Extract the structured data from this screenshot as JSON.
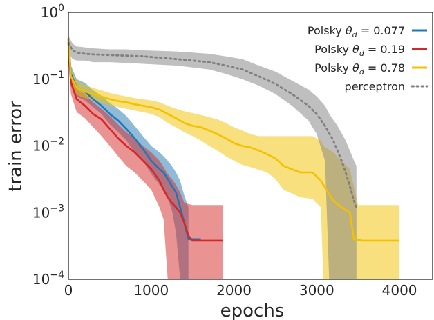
{
  "chart_data": {
    "type": "line",
    "xlabel": "epochs",
    "ylabel": "train error",
    "xlim": [
      0,
      4400
    ],
    "ylim": [
      0.0001,
      1
    ],
    "yscale": "log",
    "grid": false,
    "legend_position": "top-right",
    "x_ticks": [
      {
        "value": 0,
        "label": "0"
      },
      {
        "value": 1000,
        "label": "1000"
      },
      {
        "value": 2000,
        "label": "2000"
      },
      {
        "value": 3000,
        "label": "3000"
      },
      {
        "value": 4000,
        "label": "4000"
      }
    ],
    "y_ticks": [
      {
        "value": 0.0001,
        "base": "10",
        "exp": "−4"
      },
      {
        "value": 0.001,
        "base": "10",
        "exp": "−3"
      },
      {
        "value": 0.01,
        "base": "10",
        "exp": "−2"
      },
      {
        "value": 0.1,
        "base": "10",
        "exp": "−1"
      },
      {
        "value": 1,
        "base": "10",
        "exp": "0"
      }
    ],
    "series": [
      {
        "name_prefix": "Polsky ",
        "name_symbol": "θ",
        "name_subscript": "d",
        "name_suffix": " = 0.077",
        "color": "#1f77b4",
        "style": "solid",
        "x": [
          0,
          30,
          100,
          200,
          300,
          400,
          500,
          600,
          700,
          800,
          900,
          1000,
          1100,
          1150,
          1200,
          1250,
          1300,
          1350,
          1400,
          1450,
          1600
        ],
        "y": [
          0.4,
          0.12,
          0.075,
          0.065,
          0.05,
          0.04,
          0.03,
          0.024,
          0.018,
          0.013,
          0.009,
          0.006,
          0.0045,
          0.004,
          0.0032,
          0.0025,
          0.002,
          0.0012,
          0.0007,
          0.0004,
          0.0004
        ],
        "band_x": [
          0,
          30,
          100,
          200,
          300,
          400,
          500,
          600,
          700,
          800,
          900,
          1000,
          1100,
          1150,
          1200,
          1250,
          1300,
          1350,
          1400,
          1450
        ],
        "band_lower": [
          0.3,
          0.09,
          0.055,
          0.048,
          0.038,
          0.03,
          0.021,
          0.016,
          0.012,
          0.008,
          0.006,
          0.0038,
          0.0026,
          0.0022,
          0.0016,
          0.0011,
          0.0005,
          0.0001,
          0.0001,
          0.0001
        ],
        "band_upper": [
          0.5,
          0.16,
          0.1,
          0.088,
          0.068,
          0.056,
          0.044,
          0.036,
          0.028,
          0.02,
          0.014,
          0.01,
          0.008,
          0.007,
          0.006,
          0.005,
          0.004,
          0.003,
          0.0018,
          0.0012
        ]
      },
      {
        "name_prefix": "Polsky ",
        "name_symbol": "θ",
        "name_subscript": "d",
        "name_suffix": " = 0.19",
        "color": "#d62728",
        "style": "solid",
        "x": [
          0,
          30,
          100,
          200,
          300,
          400,
          500,
          600,
          700,
          800,
          900,
          1000,
          1100,
          1150,
          1200,
          1250,
          1300,
          1350,
          1400,
          1450,
          1500,
          1600,
          1870
        ],
        "y": [
          0.35,
          0.09,
          0.05,
          0.04,
          0.03,
          0.025,
          0.018,
          0.013,
          0.01,
          0.008,
          0.006,
          0.0045,
          0.003,
          0.0022,
          0.0017,
          0.0014,
          0.0012,
          0.001,
          0.0007,
          0.00045,
          0.00038,
          0.00038,
          0.00038
        ],
        "band_x": [
          0,
          30,
          100,
          200,
          300,
          400,
          500,
          600,
          700,
          800,
          900,
          1000,
          1100,
          1150,
          1200,
          1250,
          1300,
          1350,
          1400,
          1500,
          1600,
          1870
        ],
        "band_lower": [
          0.25,
          0.06,
          0.032,
          0.026,
          0.019,
          0.014,
          0.01,
          0.007,
          0.005,
          0.004,
          0.003,
          0.0022,
          0.0012,
          0.0008,
          0.0001,
          0.0001,
          0.0001,
          0.0001,
          0.0001,
          0.0001,
          0.0001,
          0.0001
        ],
        "band_upper": [
          0.45,
          0.12,
          0.07,
          0.06,
          0.045,
          0.036,
          0.028,
          0.021,
          0.016,
          0.013,
          0.01,
          0.008,
          0.006,
          0.0048,
          0.0038,
          0.0032,
          0.0026,
          0.002,
          0.0014,
          0.0013,
          0.0013,
          0.0013
        ]
      },
      {
        "name_prefix": "Polsky ",
        "name_symbol": "θ",
        "name_subscript": "d",
        "name_suffix": " = 0.78",
        "color": "#f2c200",
        "style": "solid",
        "x": [
          0,
          30,
          100,
          200,
          300,
          400,
          500,
          600,
          700,
          800,
          900,
          1000,
          1100,
          1200,
          1300,
          1400,
          1500,
          1600,
          1700,
          1800,
          1900,
          2000,
          2100,
          2200,
          2300,
          2400,
          2500,
          2600,
          2800,
          2950,
          3050,
          3200,
          3300,
          3400,
          3450,
          3550,
          4000
        ],
        "y": [
          0.4,
          0.11,
          0.075,
          0.065,
          0.06,
          0.055,
          0.05,
          0.047,
          0.045,
          0.042,
          0.04,
          0.038,
          0.035,
          0.03,
          0.026,
          0.022,
          0.02,
          0.019,
          0.017,
          0.015,
          0.013,
          0.011,
          0.01,
          0.0095,
          0.0085,
          0.0075,
          0.0065,
          0.005,
          0.004,
          0.004,
          0.003,
          0.0015,
          0.0012,
          0.001,
          0.0004,
          0.00038,
          0.00038
        ],
        "band_x": [
          0,
          30,
          100,
          200,
          300,
          400,
          500,
          600,
          700,
          800,
          900,
          1000,
          1100,
          1200,
          1300,
          1400,
          1500,
          1600,
          1700,
          1800,
          1900,
          2000,
          2100,
          2200,
          2300,
          2400,
          2500,
          2600,
          2800,
          2950,
          3050,
          3080,
          3200,
          3400,
          3500,
          4000
        ],
        "band_lower": [
          0.3,
          0.085,
          0.058,
          0.052,
          0.048,
          0.044,
          0.04,
          0.038,
          0.036,
          0.034,
          0.032,
          0.03,
          0.027,
          0.022,
          0.019,
          0.016,
          0.014,
          0.012,
          0.01,
          0.0085,
          0.007,
          0.006,
          0.0052,
          0.0048,
          0.0044,
          0.004,
          0.0032,
          0.0022,
          0.0017,
          0.0016,
          0.0012,
          0.0001,
          0.0001,
          0.0001,
          0.0001,
          0.0001
        ],
        "band_upper": [
          0.5,
          0.14,
          0.095,
          0.082,
          0.074,
          0.068,
          0.062,
          0.058,
          0.055,
          0.052,
          0.05,
          0.048,
          0.045,
          0.04,
          0.036,
          0.033,
          0.031,
          0.029,
          0.027,
          0.025,
          0.022,
          0.019,
          0.017,
          0.015,
          0.014,
          0.014,
          0.014,
          0.014,
          0.014,
          0.014,
          0.012,
          0.01,
          0.008,
          0.0045,
          0.0013,
          0.0013
        ]
      },
      {
        "name": "perceptron",
        "color": "#808080",
        "style": "dotted",
        "x": [
          0,
          50,
          100,
          200,
          300,
          500,
          700,
          900,
          1100,
          1300,
          1500,
          1700,
          1900,
          2100,
          2300,
          2500,
          2700,
          2900,
          3000,
          3100,
          3200,
          3300,
          3350,
          3400,
          3450,
          3480
        ],
        "y": [
          0.35,
          0.27,
          0.25,
          0.24,
          0.235,
          0.23,
          0.225,
          0.22,
          0.21,
          0.2,
          0.19,
          0.18,
          0.16,
          0.14,
          0.11,
          0.085,
          0.06,
          0.04,
          0.03,
          0.02,
          0.012,
          0.006,
          0.004,
          0.0025,
          0.0015,
          0.0012
        ],
        "band_x": [
          0,
          50,
          100,
          200,
          300,
          500,
          700,
          900,
          1100,
          1300,
          1500,
          1700,
          1900,
          2100,
          2300,
          2500,
          2700,
          2900,
          3000,
          3100,
          3150,
          3250,
          3350,
          3450,
          3480
        ],
        "band_lower": [
          0.25,
          0.2,
          0.19,
          0.19,
          0.18,
          0.18,
          0.175,
          0.17,
          0.165,
          0.16,
          0.15,
          0.14,
          0.12,
          0.1,
          0.08,
          0.06,
          0.04,
          0.024,
          0.015,
          0.006,
          0.0001,
          0.0001,
          0.0001,
          0.0001,
          0.0001
        ],
        "band_upper": [
          0.45,
          0.34,
          0.31,
          0.3,
          0.29,
          0.28,
          0.28,
          0.27,
          0.265,
          0.26,
          0.25,
          0.24,
          0.22,
          0.2,
          0.16,
          0.13,
          0.095,
          0.07,
          0.055,
          0.04,
          0.03,
          0.02,
          0.012,
          0.006,
          0.005
        ]
      }
    ]
  }
}
